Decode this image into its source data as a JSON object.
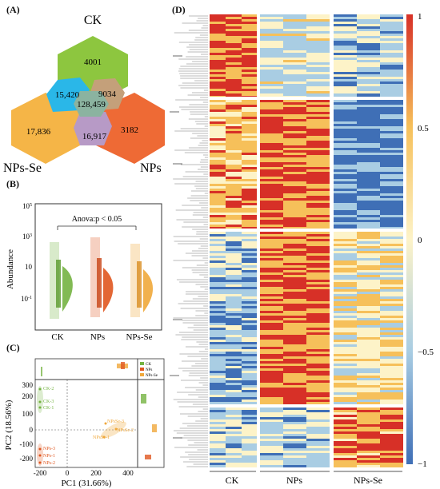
{
  "panels": {
    "a": "(A)",
    "b": "(B)",
    "c": "(C)",
    "d": "(D)"
  },
  "venn": {
    "groups": [
      "CK",
      "NPs-Se",
      "NPs"
    ],
    "ck_only": "4001",
    "ck_npsse": "15,420",
    "ck_nps": "9034",
    "all_three": "128,459",
    "npsse_only": "17,836",
    "nps_only": "3182",
    "npsse_nps": "16,917",
    "colors": {
      "ck": "#8dc63f",
      "npsse": "#f5b547",
      "nps": "#ee6a35",
      "ck_npsse": "#2ab7e8",
      "ck_nps": "#c4a07a",
      "npsse_nps": "#b79ac6",
      "center": "#8bb3a0"
    }
  },
  "abundance": {
    "y_label": "Abundance",
    "y_ticks": [
      "10^5",
      "10^3",
      "10",
      "10^-1"
    ],
    "groups": [
      "CK",
      "NPs",
      "NPs-Se"
    ],
    "stat_label": "Anova:p < 0.05",
    "colors": [
      "#74b341",
      "#e0561f",
      "#f0a83b"
    ]
  },
  "pca": {
    "x_label": "PC1 (31.66%)",
    "y_label": "PC2 (18.56%)",
    "x_ticks": [
      "-200",
      "0",
      "200",
      "400"
    ],
    "y_ticks": [
      "300",
      "200",
      "100",
      "0",
      "-100",
      "-200"
    ],
    "legend": [
      {
        "name": "CK",
        "color": "#74b341"
      },
      {
        "name": "NPs",
        "color": "#e0561f"
      },
      {
        "name": "NPs-Se",
        "color": "#f0a83b"
      }
    ],
    "point_labels_ck": [
      "CK-2",
      "CK-3",
      "CK-1"
    ],
    "point_labels_nps": [
      "NPs-3",
      "NPs-1",
      "NPs-2"
    ],
    "point_labels_npsse": [
      "NPsSe-3",
      "NPsSe-2",
      "NPsSe-1"
    ]
  },
  "heatmap": {
    "groups": [
      "CK",
      "NPs",
      "NPs-Se"
    ],
    "colorbar_ticks": [
      "1",
      "0.5",
      "0",
      "−0.5",
      "−1"
    ],
    "colors": {
      "high": "#d73027",
      "mid_high": "#f6c05a",
      "mid": "#fdf3c8",
      "mid_low": "#a9cde3",
      "low": "#3f6fb6"
    }
  }
}
